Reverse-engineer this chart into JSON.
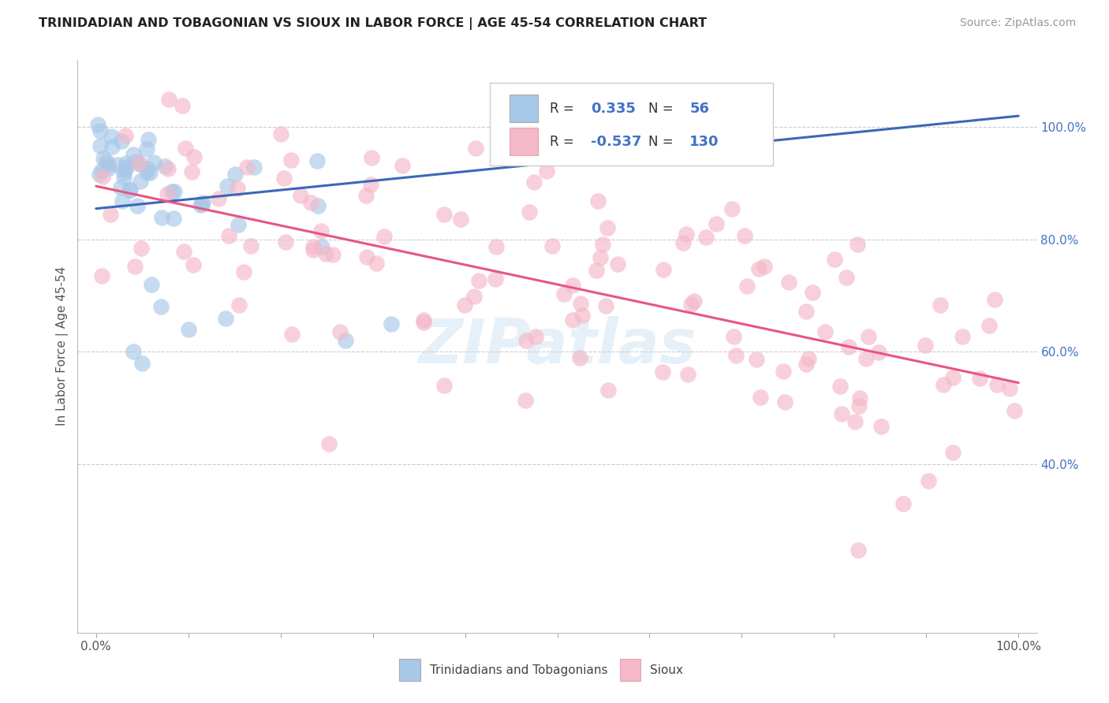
{
  "title": "TRINIDADIAN AND TOBAGONIAN VS SIOUX IN LABOR FORCE | AGE 45-54 CORRELATION CHART",
  "source": "Source: ZipAtlas.com",
  "ylabel": "In Labor Force | Age 45-54",
  "xlim": [
    -0.02,
    1.02
  ],
  "ylim": [
    0.1,
    1.12
  ],
  "ytick_positions": [
    0.4,
    0.6,
    0.8,
    1.0
  ],
  "ytick_labels": [
    "40.0%",
    "60.0%",
    "80.0%",
    "100.0%"
  ],
  "blue_R": 0.335,
  "blue_N": 56,
  "pink_R": -0.537,
  "pink_N": 130,
  "blue_color": "#a8c8e8",
  "pink_color": "#f4b8c8",
  "blue_line_color": "#3a68b8",
  "pink_line_color": "#e85585",
  "legend_label_blue": "Trinidadians and Tobagonians",
  "legend_label_pink": "Sioux",
  "background_color": "#ffffff",
  "grid_color": "#cccccc",
  "blue_line_y0": 0.855,
  "blue_line_y1": 1.02,
  "blue_line_x0": 0.0,
  "blue_line_x1": 1.0,
  "pink_line_y0": 0.895,
  "pink_line_y1": 0.545,
  "pink_line_x0": 0.0,
  "pink_line_x1": 1.0
}
